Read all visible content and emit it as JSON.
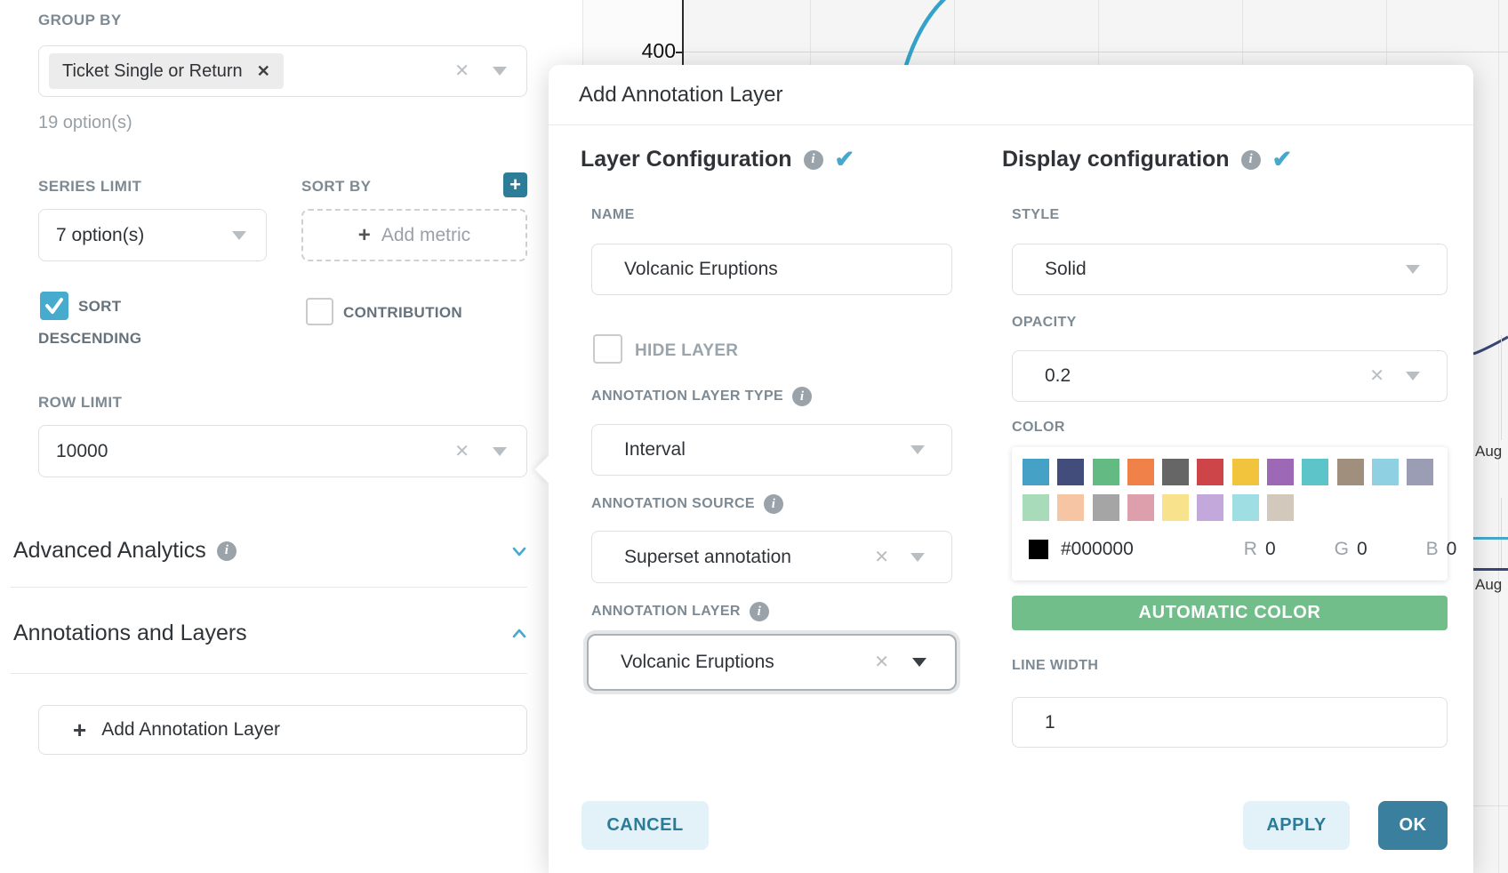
{
  "colors": {
    "primary_teal": "#45a8cc",
    "dark_teal_button": "#2e7d98",
    "ok_button": "#3a7f9d",
    "cancel_button_bg": "#e2f2f8",
    "automatic_color_green": "#71be8b",
    "checkbox_checked": "#47abce",
    "chart_line_blue": "#35a3c9",
    "chart_line_navy": "#3a4677"
  },
  "background_chart": {
    "y_tick": "400",
    "x_labels": [
      "Aug",
      "Aug"
    ]
  },
  "left_panel": {
    "group_by": {
      "label": "GROUP BY",
      "tag": "Ticket Single or Return",
      "helper": "19 option(s)"
    },
    "series_limit": {
      "label": "SERIES LIMIT",
      "value": "7 option(s)"
    },
    "sort_by": {
      "label": "SORT BY",
      "placeholder": "Add metric"
    },
    "sort_descending": {
      "label_line1": "SORT",
      "label_line2": "DESCENDING",
      "checked": true
    },
    "contribution": {
      "label": "CONTRIBUTION",
      "checked": false
    },
    "row_limit": {
      "label": "ROW LIMIT",
      "value": "10000"
    },
    "advanced_analytics": {
      "label": "Advanced Analytics",
      "state": "collapsed"
    },
    "annotations_layers": {
      "label": "Annotations and Layers",
      "state": "expanded"
    },
    "add_annotation_layer_button": "Add Annotation Layer"
  },
  "modal": {
    "title": "Add Annotation Layer",
    "layer_configuration": {
      "heading": "Layer Configuration",
      "name": {
        "label": "NAME",
        "value": "Volcanic Eruptions"
      },
      "hide_layer": {
        "label": "HIDE LAYER",
        "checked": false
      },
      "annotation_layer_type": {
        "label": "ANNOTATION LAYER TYPE",
        "value": "Interval"
      },
      "annotation_source": {
        "label": "ANNOTATION SOURCE",
        "value": "Superset annotation"
      },
      "annotation_layer": {
        "label": "ANNOTATION LAYER",
        "value": "Volcanic Eruptions"
      }
    },
    "display_configuration": {
      "heading": "Display configuration",
      "style": {
        "label": "STYLE",
        "value": "Solid"
      },
      "opacity": {
        "label": "OPACITY",
        "value": "0.2"
      },
      "color": {
        "label": "COLOR",
        "hex": "#000000",
        "r_label": "R",
        "r_value": "0",
        "g_label": "G",
        "g_value": "0",
        "b_label": "B",
        "b_value": "0",
        "palette_row1": [
          "#45A2C6",
          "#424D7C",
          "#63BA82",
          "#EF8149",
          "#666666",
          "#CE4549",
          "#F2C43D",
          "#9D69B6",
          "#5DC5C9",
          "#A18F7D",
          "#8FD0E2",
          "#9B9DB4"
        ],
        "palette_row2": [
          "#A7DBBA",
          "#F6C5A3",
          "#A5A5A5",
          "#DC9FAB",
          "#F8E38C",
          "#C3A9DB",
          "#9FDFE3",
          "#D3C8BC"
        ]
      },
      "automatic_color_button": "AUTOMATIC COLOR",
      "line_width": {
        "label": "LINE WIDTH",
        "value": "1"
      }
    },
    "footer": {
      "cancel": "CANCEL",
      "apply": "APPLY",
      "ok": "OK"
    }
  }
}
